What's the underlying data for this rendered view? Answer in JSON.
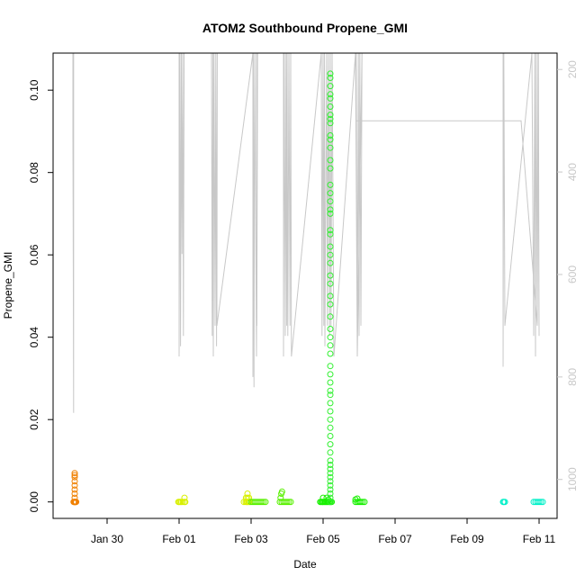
{
  "chart_data": {
    "type": "scatter",
    "title": "ATOM2 Southbound Propene_GMI",
    "xlabel": "Date",
    "ylabel": "Propene_GMI",
    "x_tick_labels": [
      "Jan 30",
      "Feb 01",
      "Feb 03",
      "Feb 05",
      "Feb 07",
      "Feb 09",
      "Feb 11"
    ],
    "x_tick_days": [
      0,
      2,
      4,
      6,
      8,
      10,
      12
    ],
    "xlim_days": [
      -1.5,
      12.5
    ],
    "y_ticks": [
      0.0,
      0.02,
      0.04,
      0.06,
      0.08,
      0.1
    ],
    "y_tick_labels": [
      "0.00",
      "0.02",
      "0.04",
      "0.06",
      "0.08",
      "0.10"
    ],
    "ylim": [
      -0.004,
      0.109
    ],
    "right_axis": {
      "tick_labels": [
        "200",
        "400",
        "600",
        "800",
        "1000"
      ],
      "values": [
        200,
        400,
        600,
        800,
        1000
      ],
      "range": [
        168,
        1076
      ],
      "direction": "reversed",
      "color": "#c8c8c8"
    },
    "grid": false,
    "series": [
      {
        "color": "#f08000",
        "x": [
          -0.93,
          -0.92,
          -0.91,
          -0.9,
          -0.89,
          -0.88,
          -0.87,
          -0.86,
          -0.9,
          -0.9,
          -0.9,
          -0.9,
          -0.9,
          -0.9,
          -0.9,
          -0.9
        ],
        "y": [
          0.0,
          0.0,
          0.0,
          0.0,
          0.0,
          0.0,
          0.0,
          0.0,
          0.001,
          0.002,
          0.003,
          0.004,
          0.005,
          0.006,
          0.0065,
          0.007
        ]
      },
      {
        "color": "#d8f000",
        "x": [
          1.98,
          2.0,
          2.03,
          2.06,
          2.1,
          2.15,
          2.17,
          2.15,
          3.8,
          3.85,
          3.88,
          3.9,
          3.93,
          3.96,
          3.86,
          3.9,
          3.94,
          3.9
        ],
        "y": [
          0.0,
          0.0,
          0.0,
          0.0,
          0.0,
          0.0,
          0.0,
          0.001,
          0.0,
          0.0,
          0.0,
          0.0,
          0.0,
          0.0,
          0.001,
          0.001,
          0.001,
          0.002
        ]
      },
      {
        "color": "#58f000",
        "x": [
          4.0,
          4.05,
          4.1,
          4.15,
          4.2,
          4.25,
          4.3,
          4.35,
          4.4,
          4.8,
          4.85,
          4.9,
          4.95,
          5.0,
          5.05,
          5.1,
          4.82,
          4.84,
          4.86
        ],
        "y": [
          0.0,
          0.0,
          0.0,
          0.0,
          0.0,
          0.0,
          0.0,
          0.0,
          0.0,
          0.0,
          0.0,
          0.0,
          0.0,
          0.0,
          0.0,
          0.0,
          0.001,
          0.002,
          0.0025
        ]
      },
      {
        "color": "#18f000",
        "x": [
          5.92,
          5.95,
          5.98,
          6.0,
          6.03,
          6.06,
          6.09,
          6.12,
          6.15,
          6.18,
          6.21,
          6.24,
          6.0,
          6.1,
          6.15,
          6.9,
          6.95,
          7.0,
          7.05,
          7.1,
          7.15,
          6.9,
          6.95
        ],
        "y": [
          0.0,
          0.0,
          0.0,
          0.0,
          0.0,
          0.0,
          0.0,
          0.0,
          0.0,
          0.0,
          0.0,
          0.0,
          0.001,
          0.001,
          0.0005,
          0.0,
          0.0,
          0.0,
          0.0,
          0.0,
          0.0,
          0.0006,
          0.0008
        ]
      },
      {
        "color": "#30f030",
        "x": [
          6.2,
          6.2,
          6.2,
          6.2,
          6.2,
          6.2,
          6.2,
          6.2,
          6.2,
          6.2,
          6.2,
          6.2,
          6.2,
          6.2,
          6.2,
          6.2,
          6.2,
          6.2,
          6.2,
          6.2,
          6.2,
          6.2,
          6.2,
          6.2,
          6.2,
          6.2,
          6.2,
          6.2,
          6.2,
          6.2,
          6.2,
          6.2,
          6.2,
          6.2,
          6.2,
          6.2,
          6.2,
          6.2,
          6.2,
          6.2,
          6.2,
          6.2,
          6.2,
          6.2,
          6.2,
          6.2,
          6.2,
          6.2,
          6.2,
          6.2,
          6.2,
          6.2,
          6.2,
          6.2,
          6.2,
          6.2
        ],
        "y": [
          0.0,
          0.001,
          0.002,
          0.003,
          0.004,
          0.005,
          0.006,
          0.007,
          0.008,
          0.009,
          0.01,
          0.012,
          0.014,
          0.016,
          0.018,
          0.02,
          0.022,
          0.024,
          0.026,
          0.027,
          0.029,
          0.031,
          0.033,
          0.036,
          0.038,
          0.04,
          0.042,
          0.045,
          0.048,
          0.05,
          0.053,
          0.055,
          0.058,
          0.06,
          0.062,
          0.065,
          0.066,
          0.07,
          0.071,
          0.073,
          0.075,
          0.077,
          0.081,
          0.083,
          0.086,
          0.088,
          0.089,
          0.092,
          0.093,
          0.094,
          0.096,
          0.098,
          0.099,
          0.101,
          0.103,
          0.104
        ]
      },
      {
        "color": "#00f0c8",
        "x": [
          11.0,
          11.02,
          11.05,
          11.85,
          11.9,
          11.95,
          12.0,
          12.05,
          12.1
        ],
        "y": [
          0.0,
          0.0,
          0.0,
          0.0,
          0.0,
          0.0,
          0.0,
          0.0,
          0.0
        ]
      }
    ],
    "altitude_track": {
      "color": "#c8c8c8",
      "axis": "right",
      "x": [
        -0.95,
        -0.95,
        -0.94,
        -0.93,
        -0.93,
        2.0,
        2.0,
        2.02,
        2.04,
        2.06,
        2.08,
        2.1,
        2.12,
        2.14,
        2.12,
        2.1,
        2.9,
        2.92,
        2.94,
        2.95,
        2.97,
        3.0,
        3.02,
        3.04,
        3.06,
        3.05,
        4.05,
        4.05,
        4.06,
        4.08,
        4.1,
        4.15,
        4.18,
        4.16,
        4.15,
        4.9,
        4.9,
        4.92,
        4.95,
        4.97,
        4.99,
        5.0,
        5.02,
        5.05,
        5.08,
        5.1,
        5.12,
        5.95,
        5.97,
        6.0,
        6.02,
        6.04,
        6.05,
        6.1,
        6.12,
        6.15,
        6.18,
        6.2,
        6.22,
        6.25,
        6.3,
        6.9,
        6.92,
        6.95,
        6.98,
        7.0,
        7.02,
        7.05,
        7.08,
        6.95,
        6.9,
        11.0,
        11.0,
        11.02,
        11.05,
        11.8,
        11.85,
        11.88,
        11.9,
        11.92,
        11.95,
        11.97,
        12.0,
        11.98,
        11.95,
        11.5,
        6.9
      ],
      "y": [
        168,
        320,
        560,
        870,
        168,
        168,
        760,
        168,
        740,
        168,
        560,
        168,
        720,
        168,
        700,
        168,
        168,
        720,
        168,
        760,
        168,
        700,
        168,
        740,
        168,
        700,
        168,
        800,
        168,
        820,
        168,
        760,
        168,
        700,
        168,
        168,
        760,
        168,
        720,
        168,
        700,
        168,
        720,
        168,
        700,
        168,
        760,
        168,
        720,
        168,
        700,
        168,
        740,
        168,
        700,
        168,
        720,
        168,
        700,
        168,
        760,
        168,
        168,
        740,
        168,
        720,
        168,
        700,
        168,
        760,
        168,
        168,
        780,
        168,
        700,
        168,
        720,
        168,
        760,
        168,
        700,
        168,
        720,
        168,
        700,
        300,
        300
      ]
    }
  }
}
